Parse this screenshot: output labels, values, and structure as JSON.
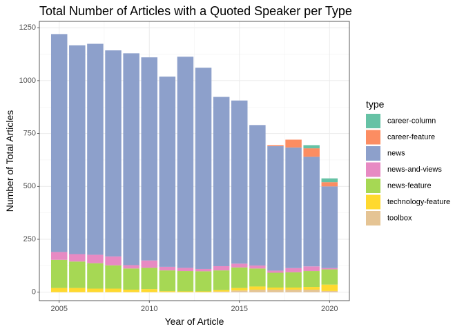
{
  "chart_data": {
    "type": "bar",
    "stacked": true,
    "title": "Total Number of Articles with a Quoted Speaker per Type",
    "xlabel": "Year of Article",
    "ylabel": "Number of Total Articles",
    "x": [
      2005,
      2006,
      2007,
      2008,
      2009,
      2010,
      2011,
      2012,
      2013,
      2014,
      2015,
      2016,
      2017,
      2018,
      2019,
      2020
    ],
    "xlim": [
      2003.9,
      2021.1
    ],
    "xticks": [
      2005,
      2010,
      2015,
      2020
    ],
    "xtick_labels": [
      "2005",
      "2010",
      "2015",
      "2020"
    ],
    "ylim": [
      -40,
      1280
    ],
    "yticks": [
      0,
      250,
      500,
      750,
      1000,
      1250
    ],
    "ytick_labels": [
      "0",
      "250",
      "500",
      "750",
      "1000",
      "1250"
    ],
    "grid": true,
    "legend_position": "right",
    "legend_title": "type",
    "series": [
      {
        "name": "toolbox",
        "color": "#E5C494",
        "values": [
          0,
          0,
          0,
          0,
          0,
          0,
          0,
          0,
          0,
          3,
          8,
          12,
          12,
          12,
          12,
          6
        ]
      },
      {
        "name": "technology-feature",
        "color": "#FFD92F",
        "values": [
          20,
          20,
          17,
          17,
          12,
          15,
          5,
          4,
          4,
          7,
          12,
          15,
          10,
          10,
          13,
          30
        ]
      },
      {
        "name": "news-feature",
        "color": "#A6D854",
        "values": [
          133,
          125,
          120,
          110,
          100,
          100,
          98,
          96,
          95,
          93,
          97,
          85,
          70,
          72,
          75,
          72
        ]
      },
      {
        "name": "news-and-views",
        "color": "#E78AC3",
        "values": [
          37,
          35,
          40,
          42,
          16,
          35,
          17,
          15,
          11,
          20,
          18,
          14,
          10,
          20,
          22,
          6
        ]
      },
      {
        "name": "news",
        "color": "#8DA0CB",
        "values": [
          1030,
          987,
          997,
          974,
          1001,
          960,
          899,
          998,
          951,
          800,
          771,
          664,
          588,
          570,
          518,
          386
        ]
      },
      {
        "name": "career-feature",
        "color": "#FC8D62",
        "values": [
          0,
          0,
          0,
          0,
          0,
          0,
          0,
          0,
          0,
          0,
          0,
          0,
          5,
          37,
          40,
          20
        ]
      },
      {
        "name": "career-column",
        "color": "#66C2A5",
        "values": [
          0,
          0,
          0,
          0,
          0,
          0,
          0,
          0,
          0,
          0,
          0,
          0,
          0,
          0,
          15,
          18
        ]
      }
    ]
  }
}
